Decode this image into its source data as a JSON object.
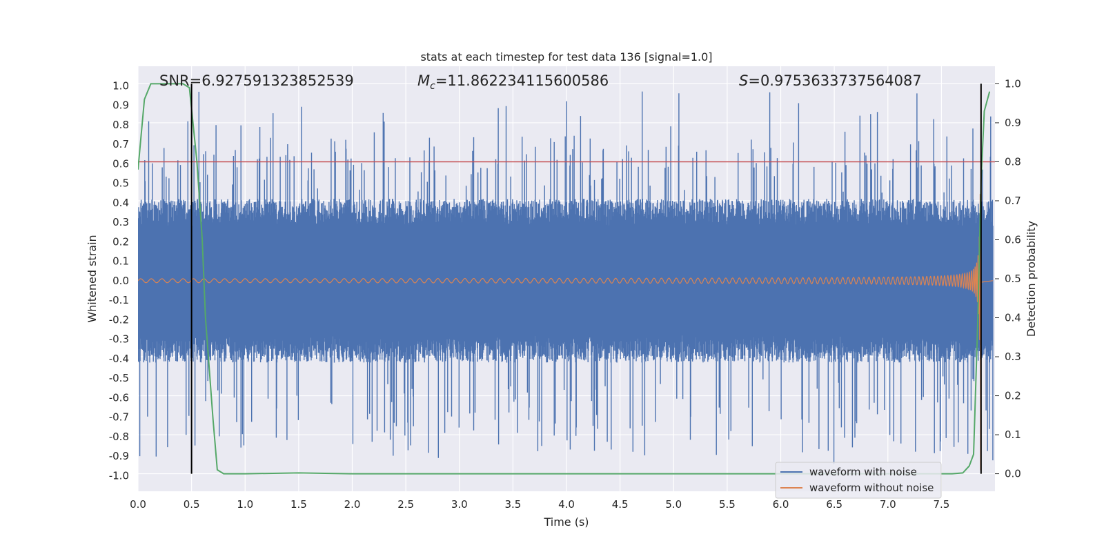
{
  "chart_data": {
    "type": "line",
    "title": "stats at each timestep for test data 136 [signal=1.0]",
    "xlabel": "Time (s)",
    "ylabel": "Whitened strain",
    "y2label": "Detection probability",
    "xlim": [
      0.0,
      8.0
    ],
    "ylim": [
      -1.08,
      1.1
    ],
    "y2lim": [
      -0.045,
      1.045
    ],
    "x_ticks": [
      "0.0",
      "0.5",
      "1.0",
      "1.5",
      "2.0",
      "2.5",
      "3.0",
      "3.5",
      "4.0",
      "4.5",
      "5.0",
      "5.5",
      "6.0",
      "6.5",
      "7.0",
      "7.5"
    ],
    "y_ticks": [
      "-1.0",
      "-0.9",
      "-0.8",
      "-0.7",
      "-0.6",
      "-0.5",
      "-0.4",
      "-0.3",
      "-0.2",
      "-0.1",
      "0.0",
      "0.1",
      "0.2",
      "0.3",
      "0.4",
      "0.5",
      "0.6",
      "0.7",
      "0.8",
      "0.9",
      "1.0"
    ],
    "y2_ticks": [
      "0.0",
      "0.1",
      "0.2",
      "0.3",
      "0.4",
      "0.5",
      "0.6",
      "0.7",
      "0.8",
      "0.9",
      "1.0"
    ],
    "grid": true,
    "legend_position": "lower right",
    "annotations": {
      "snr": "SNR=6.927591323852539",
      "mc_symbol": "M",
      "mc_subscript": "c",
      "mc_value": "=11.862234115600586",
      "s_symbol": "S",
      "s_value": "=0.9753633737564087"
    },
    "threshold": 0.8,
    "vertical_markers": [
      0.5,
      7.87
    ],
    "series": [
      {
        "name": "waveform with noise",
        "color": "#4c72b0",
        "description": "dense noisy strain, mostly within ±0.45 with peaks near ±1.0",
        "envelope_min": -1.0,
        "envelope_max": 1.0
      },
      {
        "name": "waveform without noise",
        "color": "#dd8452",
        "description": "chirp signal, amplitude growing from ~0.01 to ~1.0 near t=7.85 s",
        "amplitude_start": 0.01,
        "amplitude_peak": 1.0,
        "merger_time": 7.87
      },
      {
        "name": "detection probability",
        "axis": "right",
        "color": "#55a868",
        "x": [
          0.0,
          0.06,
          0.12,
          0.2,
          0.3,
          0.42,
          0.48,
          0.55,
          0.6,
          0.63,
          0.7,
          0.74,
          0.8,
          1.0,
          1.5,
          2.0,
          3.0,
          4.0,
          5.0,
          6.0,
          7.0,
          7.6,
          7.7,
          7.76,
          7.8,
          7.84,
          7.87,
          7.9,
          7.95
        ],
        "y": [
          0.78,
          0.96,
          1.0,
          1.0,
          1.0,
          1.0,
          0.99,
          0.8,
          0.6,
          0.4,
          0.14,
          0.01,
          0.0,
          0.0,
          0.002,
          0.0,
          0.0,
          0.0,
          0.0,
          0.0,
          0.0,
          0.0,
          0.002,
          0.02,
          0.05,
          0.4,
          0.75,
          0.93,
          0.98
        ]
      },
      {
        "name": "threshold",
        "color": "#c44e52"
      }
    ]
  }
}
